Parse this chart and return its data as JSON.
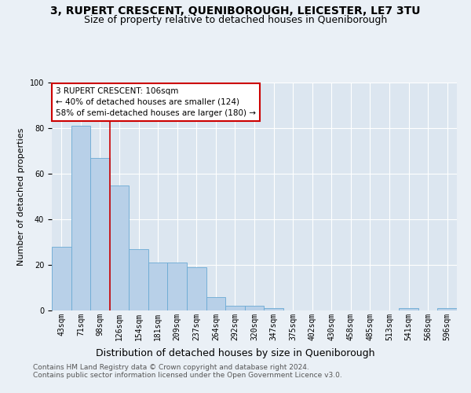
{
  "title": "3, RUPERT CRESCENT, QUENIBOROUGH, LEICESTER, LE7 3TU",
  "subtitle": "Size of property relative to detached houses in Queniborough",
  "xlabel": "Distribution of detached houses by size in Queniborough",
  "ylabel": "Number of detached properties",
  "categories": [
    "43sqm",
    "71sqm",
    "98sqm",
    "126sqm",
    "154sqm",
    "181sqm",
    "209sqm",
    "237sqm",
    "264sqm",
    "292sqm",
    "320sqm",
    "347sqm",
    "375sqm",
    "402sqm",
    "430sqm",
    "458sqm",
    "485sqm",
    "513sqm",
    "541sqm",
    "568sqm",
    "596sqm"
  ],
  "values": [
    28,
    81,
    67,
    55,
    27,
    21,
    21,
    19,
    6,
    2,
    2,
    1,
    0,
    0,
    0,
    0,
    0,
    0,
    1,
    0,
    1
  ],
  "bar_color": "#b8d0e8",
  "bar_edge_color": "#6aaad4",
  "background_color": "#dce6f0",
  "grid_color": "#ffffff",
  "annotation_text": "3 RUPERT CRESCENT: 106sqm\n← 40% of detached houses are smaller (124)\n58% of semi-detached houses are larger (180) →",
  "annotation_box_color": "#ffffff",
  "annotation_box_edge": "#cc0000",
  "red_line_color": "#cc0000",
  "footer1": "Contains HM Land Registry data © Crown copyright and database right 2024.",
  "footer2": "Contains public sector information licensed under the Open Government Licence v3.0.",
  "ylim": [
    0,
    100
  ],
  "title_fontsize": 10,
  "subtitle_fontsize": 9,
  "xlabel_fontsize": 9,
  "ylabel_fontsize": 8,
  "tick_fontsize": 7,
  "annotation_fontsize": 7.5,
  "footer_fontsize": 6.5
}
